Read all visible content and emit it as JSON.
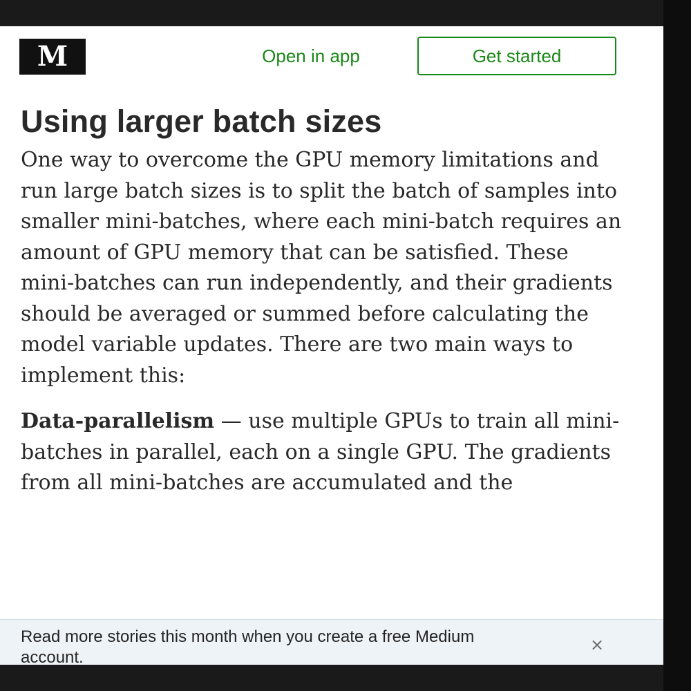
{
  "header": {
    "logo_text": "M",
    "open_in_app_label": "Open in app",
    "get_started_label": "Get started"
  },
  "article": {
    "title": "Using larger batch sizes",
    "para1": "One way to overcome the GPU memory limitations and run large batch sizes is to split the batch of samples into smaller mini-batches, where each mini-batch requires an amount of GPU memory that can be satisfied. These mini-batches can run independently, and their gradients should be averaged or summed before calculating the model variable updates. There are two main ways to implement this:",
    "para2_term": "Data-parallelism",
    "para2_text": " — use multiple GPUs to train all mini-batches in parallel, each on a single GPU. The gradients from all mini-batches are accumulated and the"
  },
  "paywall": {
    "text": "Read more stories this month when you create a free Medium account.",
    "close_symbol": "×"
  },
  "colors": {
    "accent": "#1a8917",
    "text": "#292929",
    "logo_bg": "#111111"
  }
}
